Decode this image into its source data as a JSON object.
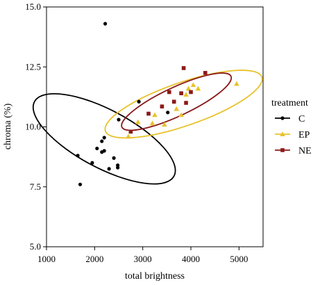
{
  "chart_data": {
    "type": "scatter",
    "xlabel": "total brightness",
    "ylabel": "chroma (%)",
    "xlim": [
      1000,
      5500
    ],
    "ylim": [
      5.0,
      15.0
    ],
    "x_ticks": [
      1000,
      2000,
      3000,
      4000,
      5000
    ],
    "x_tick_labels": [
      "1000",
      "2000",
      "3000",
      "4000",
      "5000"
    ],
    "y_ticks": [
      5.0,
      7.5,
      10.0,
      12.5,
      15.0
    ],
    "y_tick_labels": [
      "5.0",
      "7.5",
      "10.0",
      "12.5",
      "15.0"
    ],
    "grid": false,
    "legend": {
      "title": "treatment",
      "position": "right",
      "entries": [
        {
          "label": "C",
          "color": "#000000",
          "marker": "circle"
        },
        {
          "label": "EP",
          "color": "#e8c22a",
          "marker": "triangle"
        },
        {
          "label": "NE",
          "color": "#8b1a1a",
          "marker": "square"
        }
      ]
    },
    "series": [
      {
        "name": "C",
        "color": "#000000",
        "marker": "circle",
        "points": [
          [
            2220,
            14.3
          ],
          [
            1650,
            8.8
          ],
          [
            1700,
            7.6
          ],
          [
            1950,
            8.5
          ],
          [
            2050,
            9.1
          ],
          [
            2150,
            9.4
          ],
          [
            2200,
            9.55
          ],
          [
            2150,
            8.95
          ],
          [
            2200,
            9.0
          ],
          [
            2300,
            8.25
          ],
          [
            2400,
            8.7
          ],
          [
            2480,
            8.3
          ],
          [
            2480,
            8.4
          ],
          [
            2500,
            10.3
          ],
          [
            2920,
            11.05
          ],
          [
            3520,
            10.6
          ]
        ],
        "ellipse": {
          "center": [
            2200,
            9.5
          ],
          "semi_axes": [
            600,
            3.3
          ],
          "rotation_deg": 62
        }
      },
      {
        "name": "EP",
        "color": "#e8c22a",
        "marker": "triangle",
        "points": [
          [
            2700,
            9.6
          ],
          [
            2900,
            10.2
          ],
          [
            3200,
            10.15
          ],
          [
            3250,
            10.5
          ],
          [
            3450,
            10.1
          ],
          [
            3700,
            10.75
          ],
          [
            3800,
            10.5
          ],
          [
            3900,
            11.35
          ],
          [
            3950,
            11.6
          ],
          [
            4050,
            11.75
          ],
          [
            4150,
            11.6
          ],
          [
            4950,
            11.8
          ]
        ],
        "ellipse": {
          "center": [
            3850,
            10.95
          ],
          "semi_axes": [
            1720,
            0.9
          ],
          "rotation_deg": 19
        }
      },
      {
        "name": "NE",
        "color": "#8b1a1a",
        "marker": "square",
        "points": [
          [
            2750,
            9.8
          ],
          [
            3120,
            10.55
          ],
          [
            3400,
            10.85
          ],
          [
            3550,
            11.45
          ],
          [
            3650,
            11.05
          ],
          [
            3800,
            11.4
          ],
          [
            3850,
            12.45
          ],
          [
            3900,
            11.0
          ],
          [
            4000,
            11.45
          ],
          [
            4300,
            12.25
          ]
        ],
        "ellipse": {
          "center": [
            3700,
            11.05
          ],
          "semi_axes": [
            1250,
            0.6
          ],
          "rotation_deg": 25
        }
      }
    ]
  }
}
